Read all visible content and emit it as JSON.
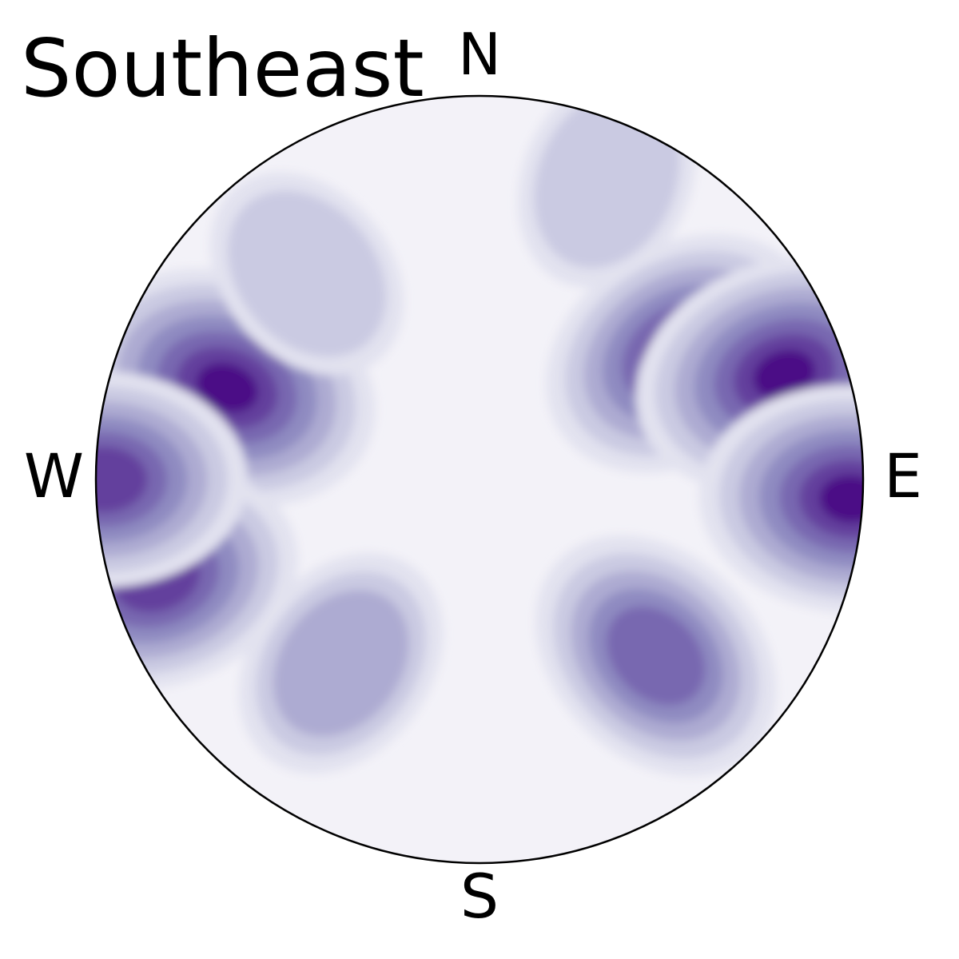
{
  "chart_data": {
    "type": "heatmap",
    "title": "Southeast",
    "cardinals": {
      "north": "N",
      "east": "E",
      "south": "S",
      "west": "W"
    },
    "colormap": [
      "#f3f2f8",
      "#e2e2ef",
      "#cacae2",
      "#adabd2",
      "#8f8bc1",
      "#7868b0",
      "#633f9d",
      "#4c1186"
    ],
    "density_clusters": [
      {
        "name": "west-upper-max",
        "azimuth_deg": 290,
        "radius": 0.7,
        "peak_level": 7
      },
      {
        "name": "west-lower",
        "azimuth_deg": 253,
        "radius": 0.88,
        "peak_level": 6
      },
      {
        "name": "west-edge",
        "azimuth_deg": 270,
        "radius": 0.98,
        "peak_level": 6
      },
      {
        "name": "east-upper-ridge",
        "azimuth_deg": 58,
        "radius": 0.62,
        "peak_level": 6
      },
      {
        "name": "east-upper-max",
        "azimuth_deg": 71,
        "radius": 0.84,
        "peak_level": 7
      },
      {
        "name": "east-edge-max",
        "azimuth_deg": 93,
        "radius": 0.97,
        "peak_level": 7
      },
      {
        "name": "southeast-band",
        "azimuth_deg": 135,
        "radius": 0.65,
        "peak_level": 5
      },
      {
        "name": "southwest-spot",
        "azimuth_deg": 217,
        "radius": 0.6,
        "peak_level": 3
      },
      {
        "name": "north-spot",
        "azimuth_deg": 23,
        "radius": 0.85,
        "peak_level": 2
      },
      {
        "name": "northwest-spot",
        "azimuth_deg": 320,
        "radius": 0.7,
        "peak_level": 2
      }
    ]
  }
}
